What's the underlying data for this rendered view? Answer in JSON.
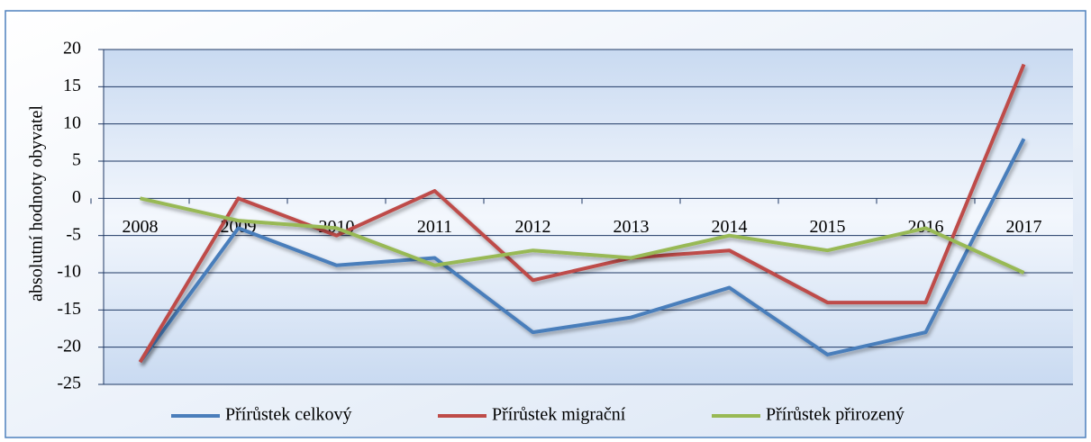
{
  "chart_data": {
    "type": "line",
    "y_label": "absolutní hodnoty obyvatel",
    "categories": [
      "2008",
      "2009",
      "2010",
      "2011",
      "2012",
      "2013",
      "2014",
      "2015",
      "2016",
      "2017"
    ],
    "series": [
      {
        "name": "Přírůstek celkový",
        "color": "#4a7ebb",
        "values": [
          -22,
          -4,
          -9,
          -8,
          -18,
          -16,
          -12,
          -21,
          -18,
          8
        ]
      },
      {
        "name": "Přírůstek migrační",
        "color": "#be4b48",
        "values": [
          -22,
          0,
          -5,
          1,
          -11,
          -8,
          -7,
          -14,
          -14,
          18
        ]
      },
      {
        "name": "Přírůstek přirozený",
        "color": "#98b954",
        "values": [
          0,
          -3,
          -4,
          -9,
          -7,
          -8,
          -5,
          -7,
          -4,
          -10
        ]
      }
    ],
    "ylim": [
      -25,
      20
    ],
    "yticks": [
      -25,
      -20,
      -15,
      -10,
      -5,
      0,
      5,
      10,
      15,
      20
    ],
    "grid": true,
    "legend": "bottom"
  }
}
